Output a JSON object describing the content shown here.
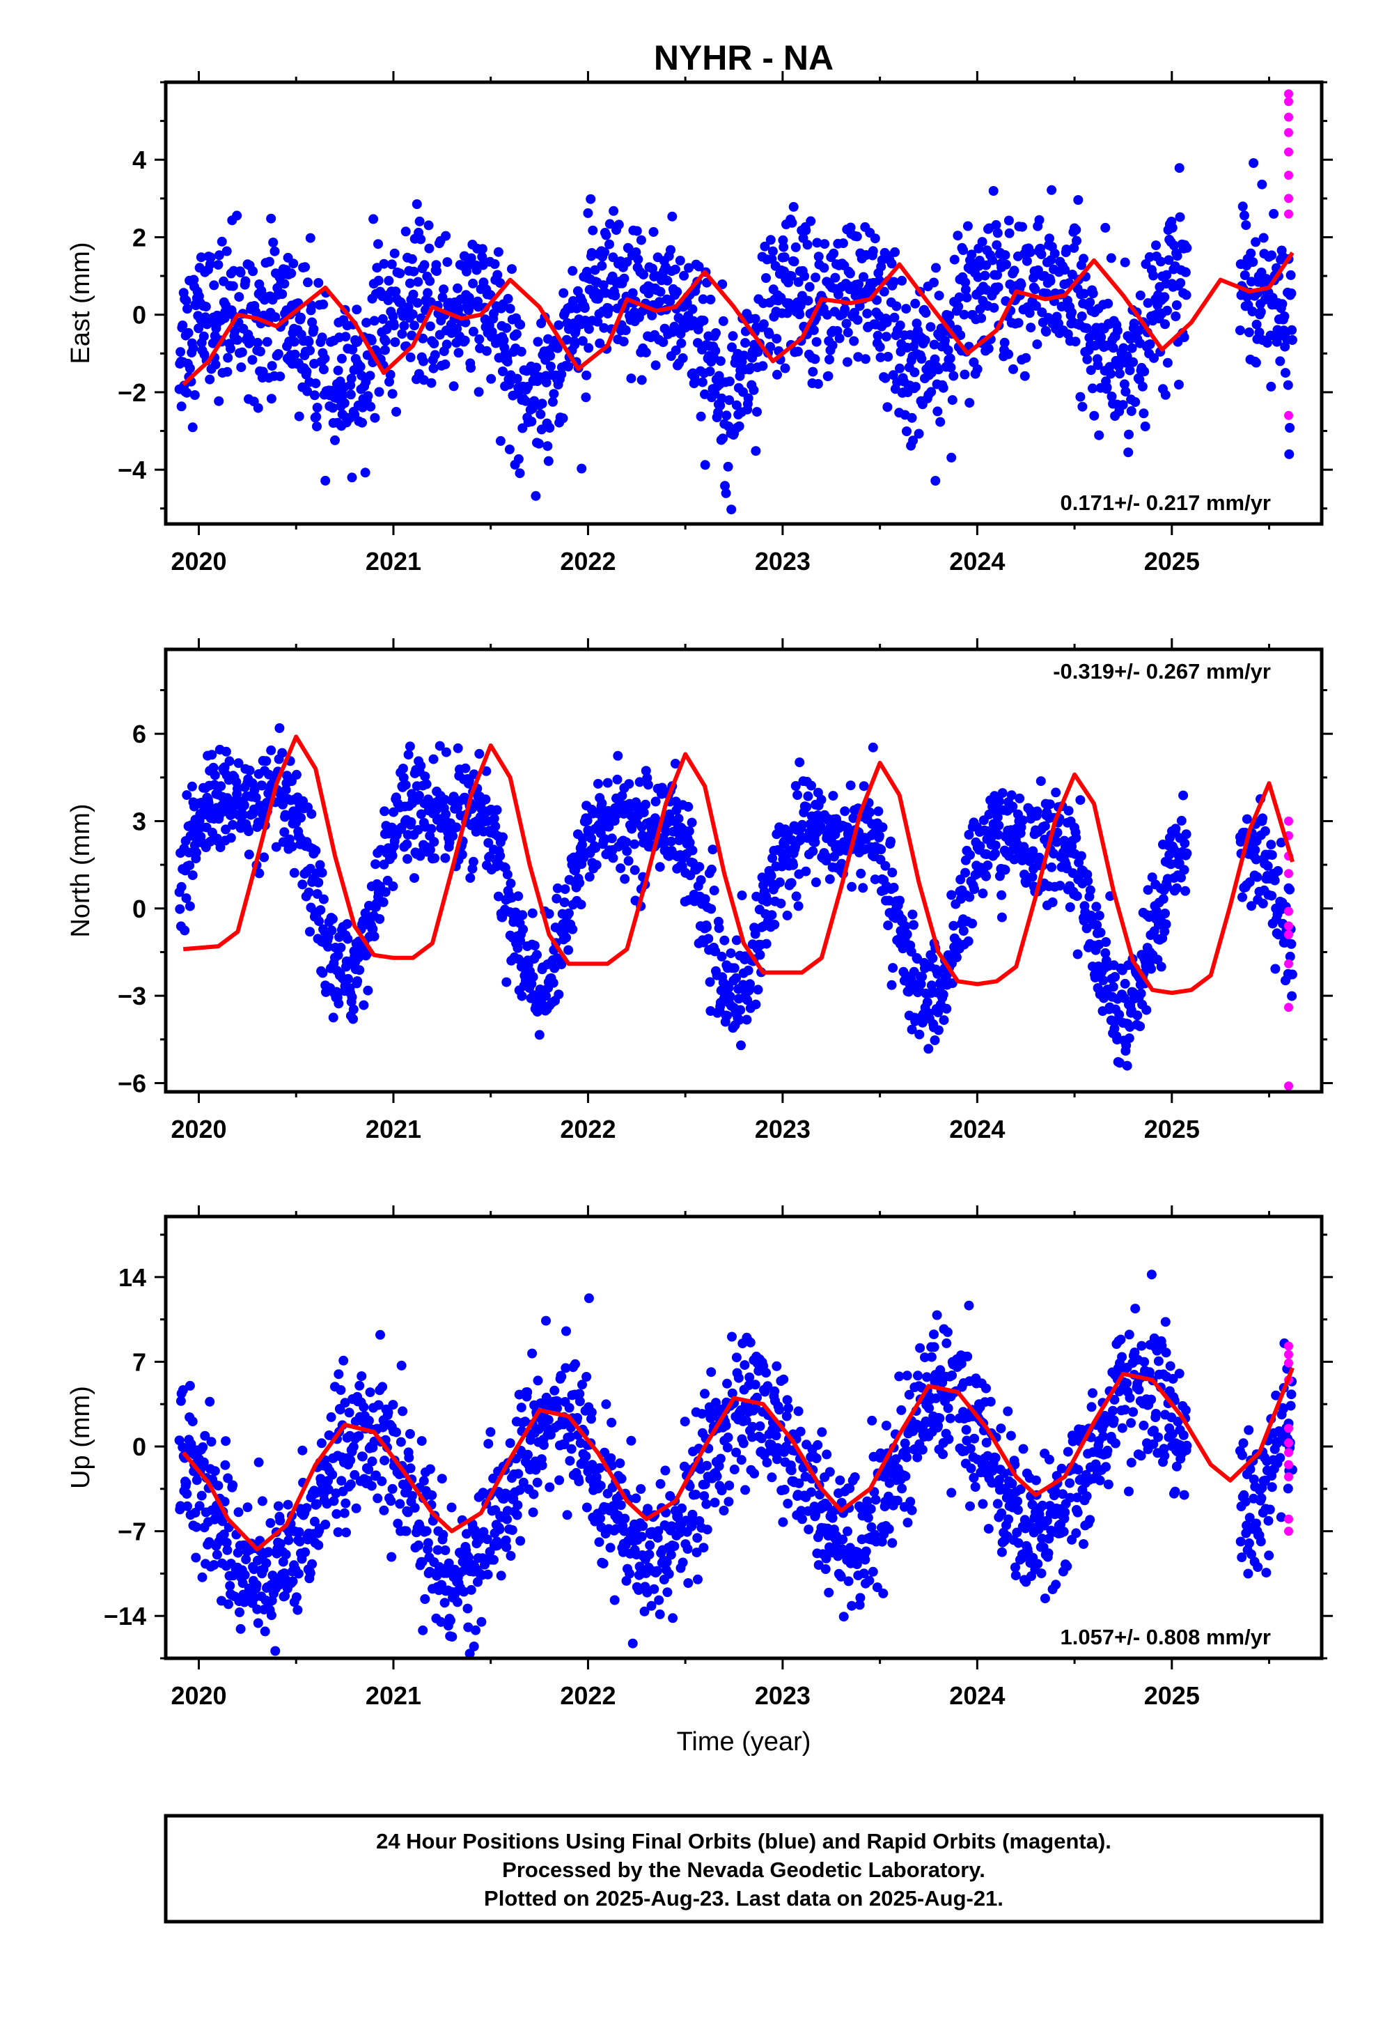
{
  "title": "NYHR - NA",
  "xlabel": "Time (year)",
  "caption": [
    "24 Hour Positions Using Final Orbits (blue) and Rapid Orbits (magenta).",
    "Processed by the Nevada Geodetic Laboratory.",
    "Plotted on 2025-Aug-23. Last data on 2025-Aug-21."
  ],
  "colors": {
    "final": "#0000ff",
    "rapid": "#ff00ff",
    "fit": "#ff0000",
    "frame": "#000000"
  },
  "chart_data": [
    {
      "type": "scatter",
      "ylabel": "East (mm)",
      "rate": "0.171+/- 0.217 mm/yr",
      "rate_position": "bottom-right",
      "xlim": [
        2019.83,
        2025.77
      ],
      "ylim": [
        -5.4,
        6.0
      ],
      "xticks": [
        2020,
        2021,
        2022,
        2023,
        2024,
        2025
      ],
      "yticks": [
        -4,
        -2,
        0,
        2,
        4
      ],
      "trend": {
        "rate": 0.171,
        "offset": -0.25
      },
      "seasonal": [
        [
          1.0,
          0.15
        ],
        [
          0.45,
          1.9
        ]
      ],
      "scatter_sd": 1.0,
      "data_start": 2019.9,
      "data_end": 2025.62,
      "gaps": [
        [
          2025.08,
          2025.35
        ]
      ],
      "fit_line": [
        [
          2019.92,
          -1.8
        ],
        [
          2020.05,
          -1.2
        ],
        [
          2020.2,
          0.0
        ],
        [
          2020.3,
          -0.1
        ],
        [
          2020.4,
          -0.3
        ],
        [
          2020.5,
          0.1
        ],
        [
          2020.65,
          0.7
        ],
        [
          2020.8,
          -0.2
        ],
        [
          2020.95,
          -1.5
        ],
        [
          2021.1,
          -0.8
        ],
        [
          2021.2,
          0.2
        ],
        [
          2021.35,
          -0.1
        ],
        [
          2021.45,
          0.0
        ],
        [
          2021.6,
          0.9
        ],
        [
          2021.75,
          0.2
        ],
        [
          2021.95,
          -1.4
        ],
        [
          2022.1,
          -0.8
        ],
        [
          2022.2,
          0.4
        ],
        [
          2022.35,
          0.1
        ],
        [
          2022.45,
          0.2
        ],
        [
          2022.6,
          1.1
        ],
        [
          2022.75,
          0.2
        ],
        [
          2022.95,
          -1.2
        ],
        [
          2023.1,
          -0.6
        ],
        [
          2023.2,
          0.4
        ],
        [
          2023.35,
          0.3
        ],
        [
          2023.45,
          0.4
        ],
        [
          2023.6,
          1.3
        ],
        [
          2023.75,
          0.3
        ],
        [
          2023.95,
          -1.0
        ],
        [
          2024.1,
          -0.4
        ],
        [
          2024.2,
          0.6
        ],
        [
          2024.35,
          0.4
        ],
        [
          2024.45,
          0.5
        ],
        [
          2024.6,
          1.4
        ],
        [
          2024.75,
          0.5
        ],
        [
          2024.95,
          -0.9
        ],
        [
          2025.1,
          -0.2
        ],
        [
          2025.25,
          0.9
        ],
        [
          2025.4,
          0.6
        ],
        [
          2025.5,
          0.7
        ],
        [
          2025.62,
          1.6
        ]
      ],
      "rapid_points": [
        [
          2025.6,
          5.7
        ],
        [
          2025.6,
          5.5
        ],
        [
          2025.6,
          5.1
        ],
        [
          2025.6,
          4.7
        ],
        [
          2025.6,
          4.2
        ],
        [
          2025.6,
          3.6
        ],
        [
          2025.6,
          3.0
        ],
        [
          2025.6,
          2.6
        ],
        [
          2025.6,
          -2.6
        ]
      ]
    },
    {
      "type": "scatter",
      "ylabel": "North (mm)",
      "rate": "-0.319+/- 0.267 mm/yr",
      "rate_position": "top-right",
      "xlim": [
        2019.83,
        2025.77
      ],
      "ylim": [
        -6.3,
        8.9
      ],
      "xticks": [
        2020,
        2021,
        2022,
        2023,
        2024,
        2025
      ],
      "yticks": [
        -6,
        -3,
        0,
        3,
        6
      ],
      "trend": {
        "rate": -0.319,
        "offset": 1.0
      },
      "seasonal": [
        [
          -2.8,
          3.14
        ],
        [
          -1.1,
          4.71
        ]
      ],
      "scatter_sd": 0.9,
      "data_start": 2019.9,
      "data_end": 2025.62,
      "gaps": [
        [
          2025.08,
          2025.35
        ]
      ],
      "fit_line": [
        [
          2019.92,
          -1.4
        ],
        [
          2020.1,
          -1.3
        ],
        [
          2020.2,
          -0.8
        ],
        [
          2020.3,
          1.7
        ],
        [
          2020.4,
          4.3
        ],
        [
          2020.5,
          5.9
        ],
        [
          2020.6,
          4.8
        ],
        [
          2020.7,
          1.8
        ],
        [
          2020.8,
          -0.6
        ],
        [
          2020.9,
          -1.6
        ],
        [
          2021.0,
          -1.7
        ],
        [
          2021.1,
          -1.7
        ],
        [
          2021.2,
          -1.2
        ],
        [
          2021.3,
          1.3
        ],
        [
          2021.4,
          3.9
        ],
        [
          2021.5,
          5.6
        ],
        [
          2021.6,
          4.5
        ],
        [
          2021.7,
          1.5
        ],
        [
          2021.8,
          -0.9
        ],
        [
          2021.9,
          -1.9
        ],
        [
          2022.0,
          -1.9
        ],
        [
          2022.1,
          -1.9
        ],
        [
          2022.2,
          -1.4
        ],
        [
          2022.3,
          1.0
        ],
        [
          2022.4,
          3.6
        ],
        [
          2022.5,
          5.3
        ],
        [
          2022.6,
          4.2
        ],
        [
          2022.7,
          1.2
        ],
        [
          2022.8,
          -1.2
        ],
        [
          2022.9,
          -2.2
        ],
        [
          2023.0,
          -2.2
        ],
        [
          2023.1,
          -2.2
        ],
        [
          2023.2,
          -1.7
        ],
        [
          2023.3,
          0.7
        ],
        [
          2023.4,
          3.3
        ],
        [
          2023.5,
          5.0
        ],
        [
          2023.6,
          3.9
        ],
        [
          2023.7,
          0.9
        ],
        [
          2023.8,
          -1.5
        ],
        [
          2023.9,
          -2.5
        ],
        [
          2024.0,
          -2.6
        ],
        [
          2024.1,
          -2.5
        ],
        [
          2024.2,
          -2.0
        ],
        [
          2024.3,
          0.4
        ],
        [
          2024.4,
          3.0
        ],
        [
          2024.5,
          4.6
        ],
        [
          2024.6,
          3.6
        ],
        [
          2024.7,
          0.6
        ],
        [
          2024.8,
          -1.8
        ],
        [
          2024.9,
          -2.8
        ],
        [
          2025.0,
          -2.9
        ],
        [
          2025.1,
          -2.8
        ],
        [
          2025.2,
          -2.3
        ],
        [
          2025.3,
          0.1
        ],
        [
          2025.4,
          2.7
        ],
        [
          2025.5,
          4.3
        ],
        [
          2025.62,
          1.6
        ]
      ],
      "rapid_points": [
        [
          2025.6,
          3.0
        ],
        [
          2025.6,
          2.5
        ],
        [
          2025.6,
          1.8
        ],
        [
          2025.6,
          1.2
        ],
        [
          2025.6,
          -0.1
        ],
        [
          2025.6,
          -0.6
        ],
        [
          2025.6,
          -0.9
        ],
        [
          2025.6,
          -1.9
        ],
        [
          2025.6,
          -3.4
        ],
        [
          2025.6,
          -6.1
        ]
      ]
    },
    {
      "type": "scatter",
      "ylabel": "Up (mm)",
      "rate": "1.057+/- 0.808 mm/yr",
      "rate_position": "bottom-right",
      "xlim": [
        2019.83,
        2025.77
      ],
      "ylim": [
        -17.5,
        19.0
      ],
      "xticks": [
        2020,
        2021,
        2022,
        2023,
        2024,
        2025
      ],
      "yticks": [
        -14,
        -7,
        0,
        7,
        14
      ],
      "trend": {
        "rate": 1.057,
        "offset": -3.0
      },
      "seasonal": [
        [
          6.0,
          2.6
        ]
      ],
      "scatter_sd": 3.0,
      "data_start": 2019.9,
      "data_end": 2025.62,
      "gaps": [
        [
          2025.08,
          2025.35
        ]
      ],
      "fit_line": [
        [
          2019.92,
          -0.5
        ],
        [
          2020.05,
          -3.0
        ],
        [
          2020.15,
          -6.0
        ],
        [
          2020.3,
          -8.5
        ],
        [
          2020.45,
          -6.5
        ],
        [
          2020.6,
          -1.5
        ],
        [
          2020.75,
          1.8
        ],
        [
          2020.9,
          1.2
        ],
        [
          2021.05,
          -2.0
        ],
        [
          2021.2,
          -5.5
        ],
        [
          2021.3,
          -7.0
        ],
        [
          2021.45,
          -5.5
        ],
        [
          2021.6,
          -1.0
        ],
        [
          2021.75,
          3.0
        ],
        [
          2021.9,
          2.5
        ],
        [
          2022.05,
          -0.5
        ],
        [
          2022.2,
          -4.5
        ],
        [
          2022.3,
          -6.0
        ],
        [
          2022.45,
          -4.5
        ],
        [
          2022.6,
          0.0
        ],
        [
          2022.75,
          4.0
        ],
        [
          2022.9,
          3.5
        ],
        [
          2023.05,
          0.5
        ],
        [
          2023.2,
          -3.5
        ],
        [
          2023.3,
          -5.3
        ],
        [
          2023.45,
          -3.5
        ],
        [
          2023.6,
          1.0
        ],
        [
          2023.75,
          5.0
        ],
        [
          2023.9,
          4.5
        ],
        [
          2024.05,
          1.5
        ],
        [
          2024.2,
          -2.5
        ],
        [
          2024.3,
          -4.0
        ],
        [
          2024.45,
          -2.5
        ],
        [
          2024.6,
          2.0
        ],
        [
          2024.75,
          6.0
        ],
        [
          2024.9,
          5.5
        ],
        [
          2025.05,
          2.5
        ],
        [
          2025.2,
          -1.5
        ],
        [
          2025.3,
          -2.8
        ],
        [
          2025.45,
          -0.5
        ],
        [
          2025.62,
          6.5
        ]
      ],
      "rapid_points": [
        [
          2025.6,
          8.3
        ],
        [
          2025.6,
          7.6
        ],
        [
          2025.6,
          6.9
        ],
        [
          2025.6,
          5.5
        ],
        [
          2025.6,
          1.5
        ],
        [
          2025.6,
          0.3
        ],
        [
          2025.6,
          -0.5
        ],
        [
          2025.6,
          -1.5
        ],
        [
          2025.6,
          -2.5
        ],
        [
          2025.6,
          -6.0
        ],
        [
          2025.6,
          -7.0
        ]
      ]
    }
  ]
}
